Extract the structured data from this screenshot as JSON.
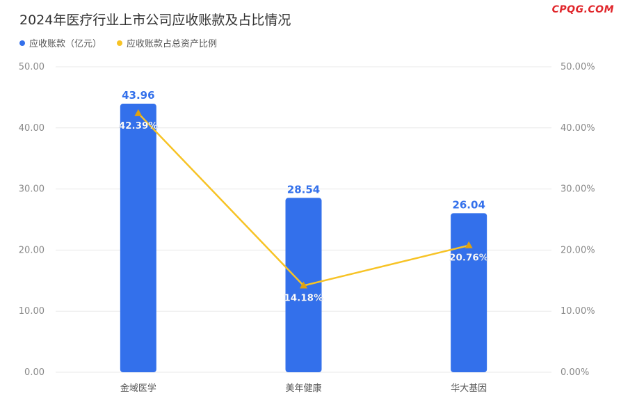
{
  "title": "2024年医疗行业上市公司应收账款及占比情况",
  "brand": "CPQG.COM",
  "colors": {
    "bar": "#3370eb",
    "line": "#f7c325",
    "marker": "#e0a10e",
    "grid": "#e8e8e8",
    "axis_text": "#888888"
  },
  "chart_data": {
    "type": "bar",
    "title": "2024年医疗行业上市公司应收账款及占比情况",
    "categories": [
      "金域医学",
      "美年健康",
      "华大基因"
    ],
    "series": [
      {
        "name": "应收账款（亿元）",
        "type": "bar",
        "axis": "left",
        "values": [
          43.96,
          28.54,
          26.04
        ],
        "labels": [
          "43.96",
          "28.54",
          "26.04"
        ]
      },
      {
        "name": "应收账款占总资产比例",
        "type": "line",
        "axis": "right",
        "values": [
          42.39,
          14.18,
          20.76
        ],
        "labels": [
          "42.39%",
          "14.18%",
          "20.76%"
        ]
      }
    ],
    "y_left": {
      "min": 0,
      "max": 50,
      "ticks": [
        "0.00",
        "10.00",
        "20.00",
        "30.00",
        "40.00",
        "50.00"
      ]
    },
    "y_right": {
      "min": 0,
      "max": 50,
      "ticks": [
        "0.00%",
        "10.00%",
        "20.00%",
        "30.00%",
        "40.00%",
        "50.00%"
      ]
    },
    "grid": true,
    "legend_position": "top-left"
  }
}
